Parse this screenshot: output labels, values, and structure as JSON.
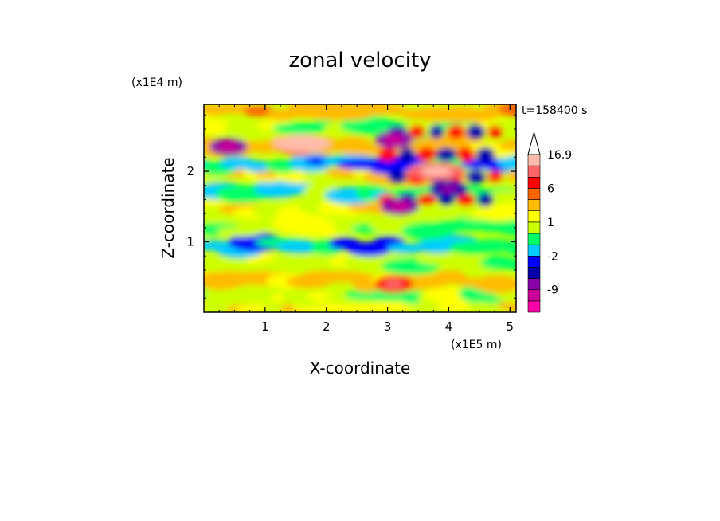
{
  "chart_data": {
    "type": "heatmap",
    "title": "zonal velocity",
    "xlabel": "X-coordinate",
    "ylabel": "Z-coordinate",
    "x_unit": "(x1E5 m)",
    "y_unit": "(x1E4 m)",
    "time_label": "t=158400 s",
    "x_ticks": [
      "1",
      "2",
      "3",
      "4",
      "5"
    ],
    "y_ticks": [
      "1",
      "2"
    ],
    "xlim": [
      0,
      5.1
    ],
    "ylim": [
      0,
      2.95
    ],
    "colorbar": {
      "labels": [
        "16.9",
        "6",
        "1",
        "-2",
        "-9"
      ],
      "levels": [
        -16.9,
        -12,
        -9,
        -6,
        -4,
        -2,
        -1,
        0,
        1,
        2,
        4,
        6,
        9,
        12,
        16.9
      ],
      "colors": [
        "#ff00aa",
        "#cc0099",
        "#8800aa",
        "#0000aa",
        "#0000ff",
        "#00ccff",
        "#00ff66",
        "#ccff00",
        "#ffff00",
        "#ffbb00",
        "#ff6600",
        "#ff0000",
        "#ff6666",
        "#ffbbaa"
      ]
    },
    "features": [
      {
        "x": 1.6,
        "z": 2.4,
        "value": 12
      },
      {
        "x": 0.4,
        "z": 2.35,
        "value": -8
      },
      {
        "x": 3.1,
        "z": 2.45,
        "value": -8
      },
      {
        "x": 3.2,
        "z": 1.5,
        "value": -8
      },
      {
        "x": 4.0,
        "z": 1.75,
        "value": -6
      },
      {
        "x": 3.8,
        "z": 2.0,
        "value": 9
      },
      {
        "x": 3.1,
        "z": 0.4,
        "value": 6
      }
    ]
  }
}
